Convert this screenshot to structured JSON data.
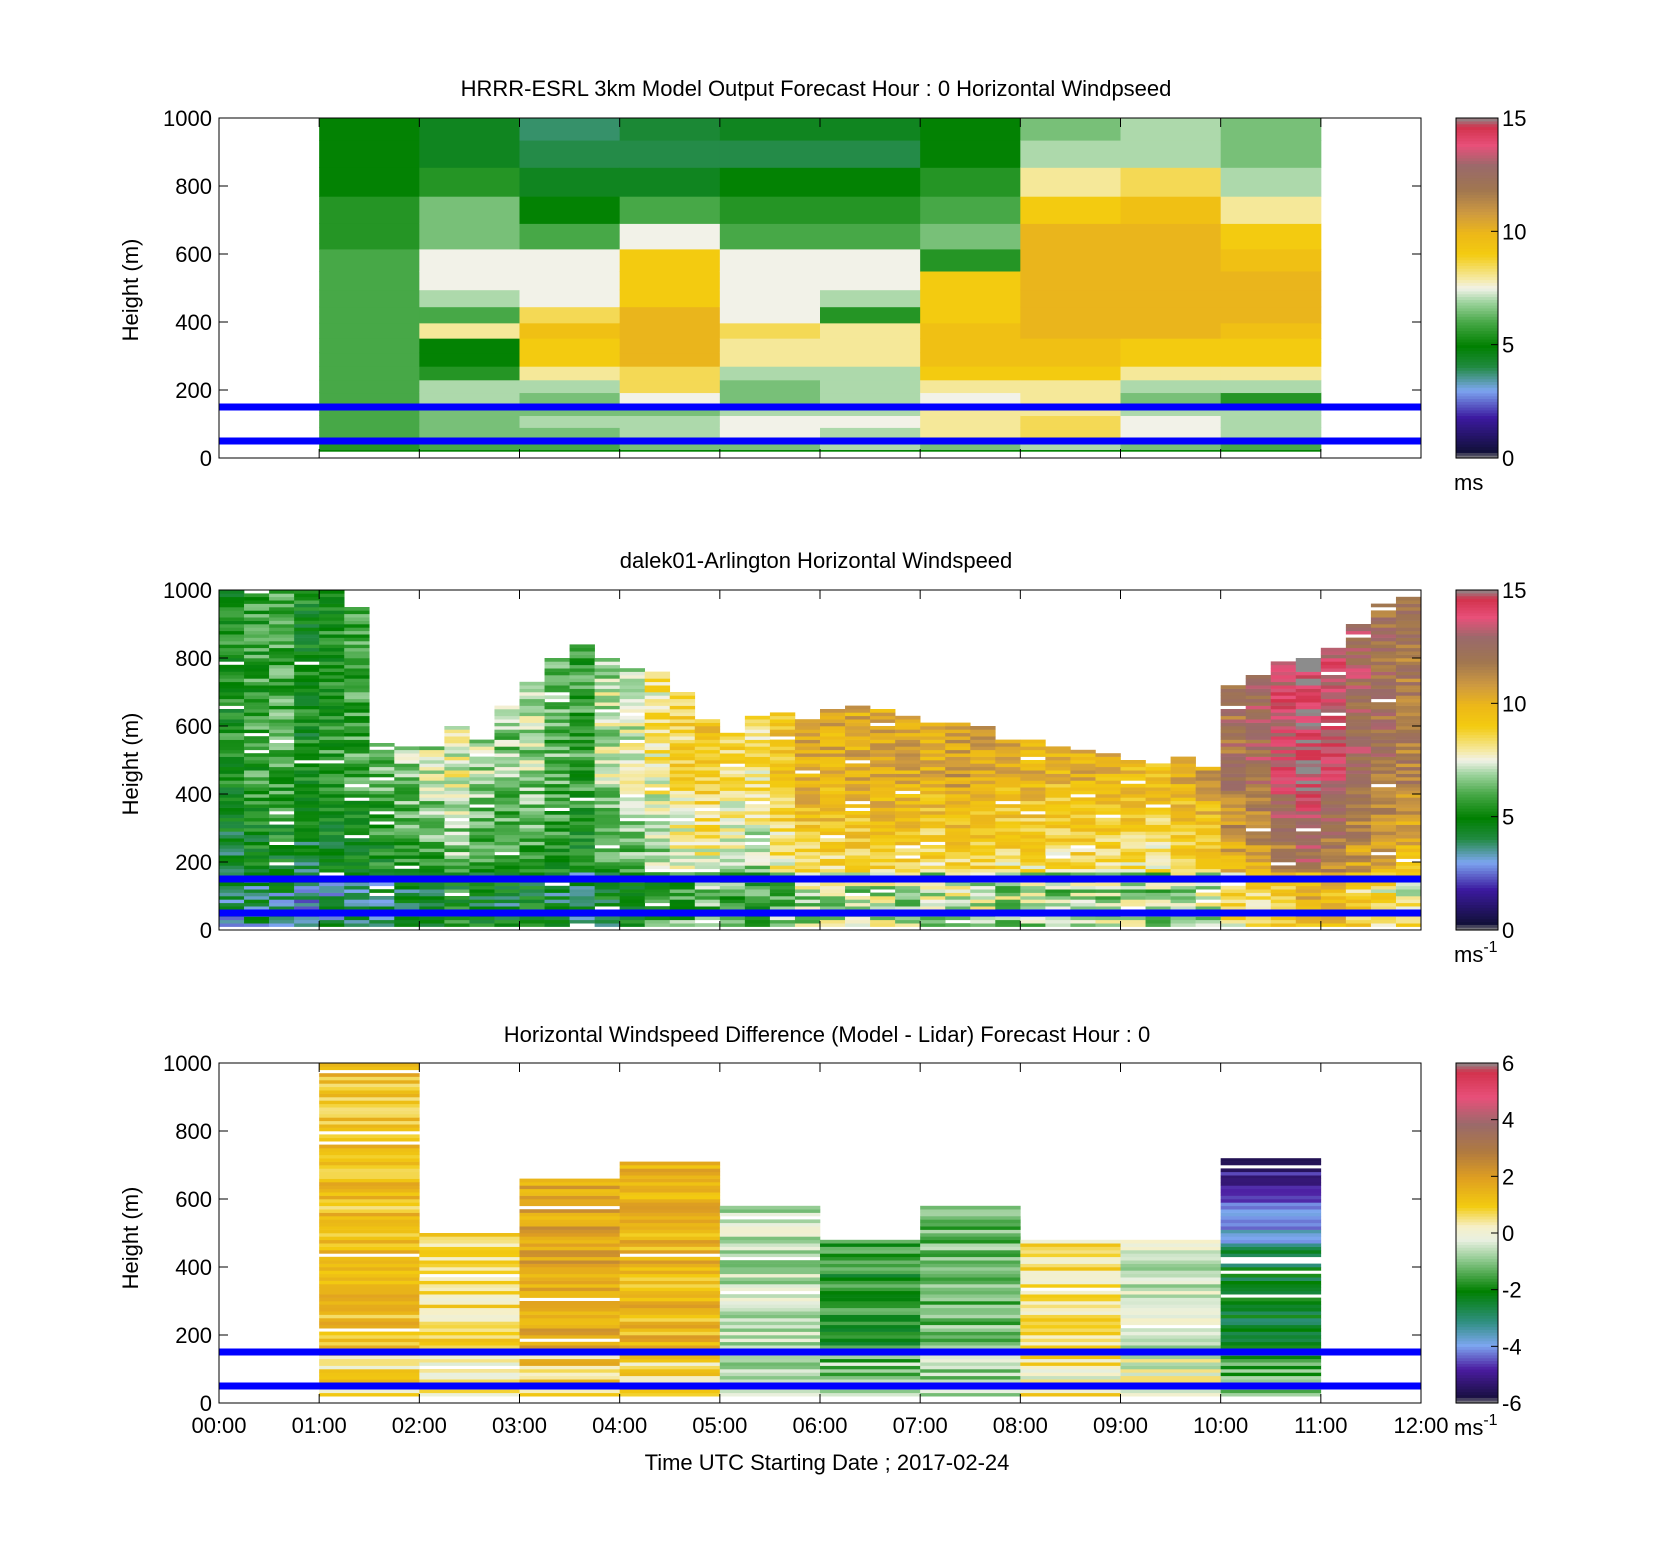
{
  "figure": {
    "xlabel": "Time UTC  Starting Date ; 2017-02-24",
    "xticks": [
      "00:00",
      "01:00",
      "02:00",
      "03:00",
      "04:00",
      "05:00",
      "06:00",
      "07:00",
      "08:00",
      "09:00",
      "10:00",
      "11:00",
      "12:00"
    ]
  },
  "chart_data": [
    {
      "type": "heatmap",
      "title": "HRRR-ESRL 3km Model Output   Forecast Hour : 0 Horizontal Windpseed",
      "ylabel": "Height (m)",
      "ylim": [
        0,
        1000
      ],
      "yticks": [
        "0",
        "200",
        "400",
        "600",
        "800",
        "1000"
      ],
      "xlim_hours": [
        0,
        12
      ],
      "colorbar": {
        "ticks": [
          "0",
          "5",
          "10",
          "15"
        ],
        "range": [
          0,
          15
        ],
        "unit": "ms",
        "unit_sup": ""
      },
      "reference_lines_m": [
        50,
        150
      ],
      "x_hours": [
        1,
        2,
        3,
        4,
        5,
        6,
        7,
        8,
        9,
        10
      ],
      "heights_m": [
        10,
        40,
        70,
        110,
        140,
        175,
        210,
        250,
        290,
        330,
        375,
        420,
        470,
        520,
        580,
        650,
        730,
        810,
        900,
        970
      ],
      "values": [
        [
          5,
          5,
          5,
          5,
          5,
          5,
          5,
          5,
          5,
          5
        ],
        [
          5.5,
          6,
          6,
          6.5,
          6.5,
          7,
          6.5,
          7,
          6.5,
          6
        ],
        [
          6,
          6.5,
          6.5,
          7,
          7.5,
          7,
          8,
          8.5,
          7.5,
          7
        ],
        [
          6,
          6.5,
          7,
          7,
          7.5,
          7.5,
          8,
          8.5,
          7.5,
          7
        ],
        [
          6,
          6.5,
          6.5,
          6.5,
          7,
          7,
          8,
          8,
          7,
          7
        ],
        [
          6,
          7,
          6.5,
          7.5,
          6.5,
          7,
          7.5,
          8,
          6.5,
          5.5
        ],
        [
          6,
          7,
          7,
          8.5,
          6.5,
          7,
          8,
          8,
          7,
          7
        ],
        [
          6,
          5.5,
          8,
          8.5,
          7,
          7,
          9,
          9,
          8,
          8
        ],
        [
          6,
          5,
          9,
          10,
          8,
          8,
          9.5,
          9.5,
          9,
          9
        ],
        [
          6,
          5,
          9,
          10,
          8,
          8,
          9.5,
          9.5,
          9,
          9
        ],
        [
          6,
          8,
          9.5,
          10,
          8.5,
          8,
          9.5,
          10,
          10,
          9.5
        ],
        [
          6,
          6,
          8.5,
          10,
          7.5,
          5.5,
          9,
          10,
          10,
          10
        ],
        [
          6,
          7,
          7.5,
          9,
          7.5,
          7,
          9,
          10,
          10,
          10
        ],
        [
          6,
          7.5,
          7.5,
          9,
          7.5,
          7.5,
          9,
          10,
          10,
          10
        ],
        [
          6,
          7.5,
          7.5,
          9,
          7.5,
          7.5,
          5.5,
          10,
          10,
          9.5
        ],
        [
          5.5,
          6.5,
          6,
          7.5,
          6,
          6,
          6.5,
          10,
          10,
          9
        ],
        [
          5.5,
          6.5,
          5,
          6,
          5.5,
          5.5,
          6,
          9,
          9.5,
          8
        ],
        [
          5,
          5.5,
          4.5,
          4.5,
          5,
          5,
          5.5,
          8,
          8.5,
          7
        ],
        [
          5,
          4.5,
          4,
          4,
          4,
          4,
          5,
          7,
          7,
          6.5
        ],
        [
          5,
          4.5,
          3.8,
          4.2,
          4.5,
          4.5,
          5,
          6.5,
          7,
          6.5
        ]
      ]
    },
    {
      "type": "heatmap",
      "title": "dalek01-Arlington  Horizontal Windspeed",
      "ylabel": "Height (m)",
      "ylim": [
        0,
        1000
      ],
      "yticks": [
        "0",
        "200",
        "400",
        "600",
        "800",
        "1000"
      ],
      "xlim_hours": [
        0,
        12
      ],
      "colorbar": {
        "ticks": [
          "0",
          "5",
          "10",
          "15"
        ],
        "range": [
          0,
          15
        ],
        "unit": "ms",
        "unit_sup": "-1"
      },
      "reference_lines_m": [
        50,
        150
      ],
      "x_hours": [
        0,
        0.25,
        0.5,
        0.75,
        1,
        1.25,
        1.5,
        1.75,
        2,
        2.25,
        2.5,
        2.75,
        3,
        3.25,
        3.5,
        3.75,
        4,
        4.25,
        4.5,
        4.75,
        5,
        5.25,
        5.5,
        5.75,
        6,
        6.25,
        6.5,
        6.75,
        7,
        7.25,
        7.5,
        7.75,
        8,
        8.25,
        8.5,
        8.75,
        9,
        9.25,
        9.5,
        9.75,
        10,
        10.25,
        10.5,
        10.75,
        11,
        11.25,
        11.5,
        11.75
      ],
      "top_m": [
        1000,
        990,
        1000,
        1000,
        1000,
        950,
        550,
        540,
        540,
        600,
        560,
        660,
        730,
        800,
        840,
        800,
        770,
        760,
        700,
        620,
        580,
        630,
        640,
        620,
        650,
        660,
        650,
        640,
        610,
        610,
        600,
        560,
        560,
        540,
        530,
        520,
        500,
        490,
        510,
        480,
        720,
        750,
        790,
        800,
        830,
        900,
        960,
        980
      ],
      "profile": [
        4.8,
        5.2,
        5.4,
        4.6,
        5.0,
        5.3,
        5.6,
        6.0,
        6.4,
        6.9,
        6.3,
        6.0,
        6.2,
        5.6,
        5.3,
        6.4,
        6.6,
        7.3,
        8.0,
        8.4,
        7.8,
        7.6,
        8.6,
        9.3,
        9.3,
        9.4,
        9.5,
        9.4,
        9.3,
        9.6,
        9.5,
        9.2,
        9.1,
        9.0,
        9.2,
        9.1,
        9.0,
        8.9,
        9.3,
        9.6,
        11.0,
        11.4,
        12.4,
        13.5,
        12.5,
        11.6,
        11.0,
        10.6
      ]
    },
    {
      "type": "heatmap",
      "title": "Horizontal Windspeed Difference (Model - Lidar) Forecast Hour : 0",
      "ylabel": "Height (m)",
      "ylim": [
        0,
        1000
      ],
      "yticks": [
        "0",
        "200",
        "400",
        "600",
        "800",
        "1000"
      ],
      "xlim_hours": [
        0,
        12
      ],
      "colorbar": {
        "ticks": [
          "-6",
          "-4",
          "-2",
          "0",
          "2",
          "4",
          "6"
        ],
        "range": [
          -6,
          6
        ],
        "unit": "ms",
        "unit_sup": "-1"
      },
      "reference_lines_m": [
        50,
        150
      ],
      "x_hours": [
        1,
        2,
        3,
        4,
        5,
        6,
        7,
        8,
        9,
        10
      ],
      "top_m": [
        1000,
        500,
        660,
        720,
        580,
        480,
        580,
        480,
        480,
        720
      ],
      "profile": [
        1.2,
        0.6,
        1.8,
        1.4,
        -0.6,
        -1.8,
        -1.2,
        0.6,
        -0.4,
        -2.4
      ]
    }
  ]
}
